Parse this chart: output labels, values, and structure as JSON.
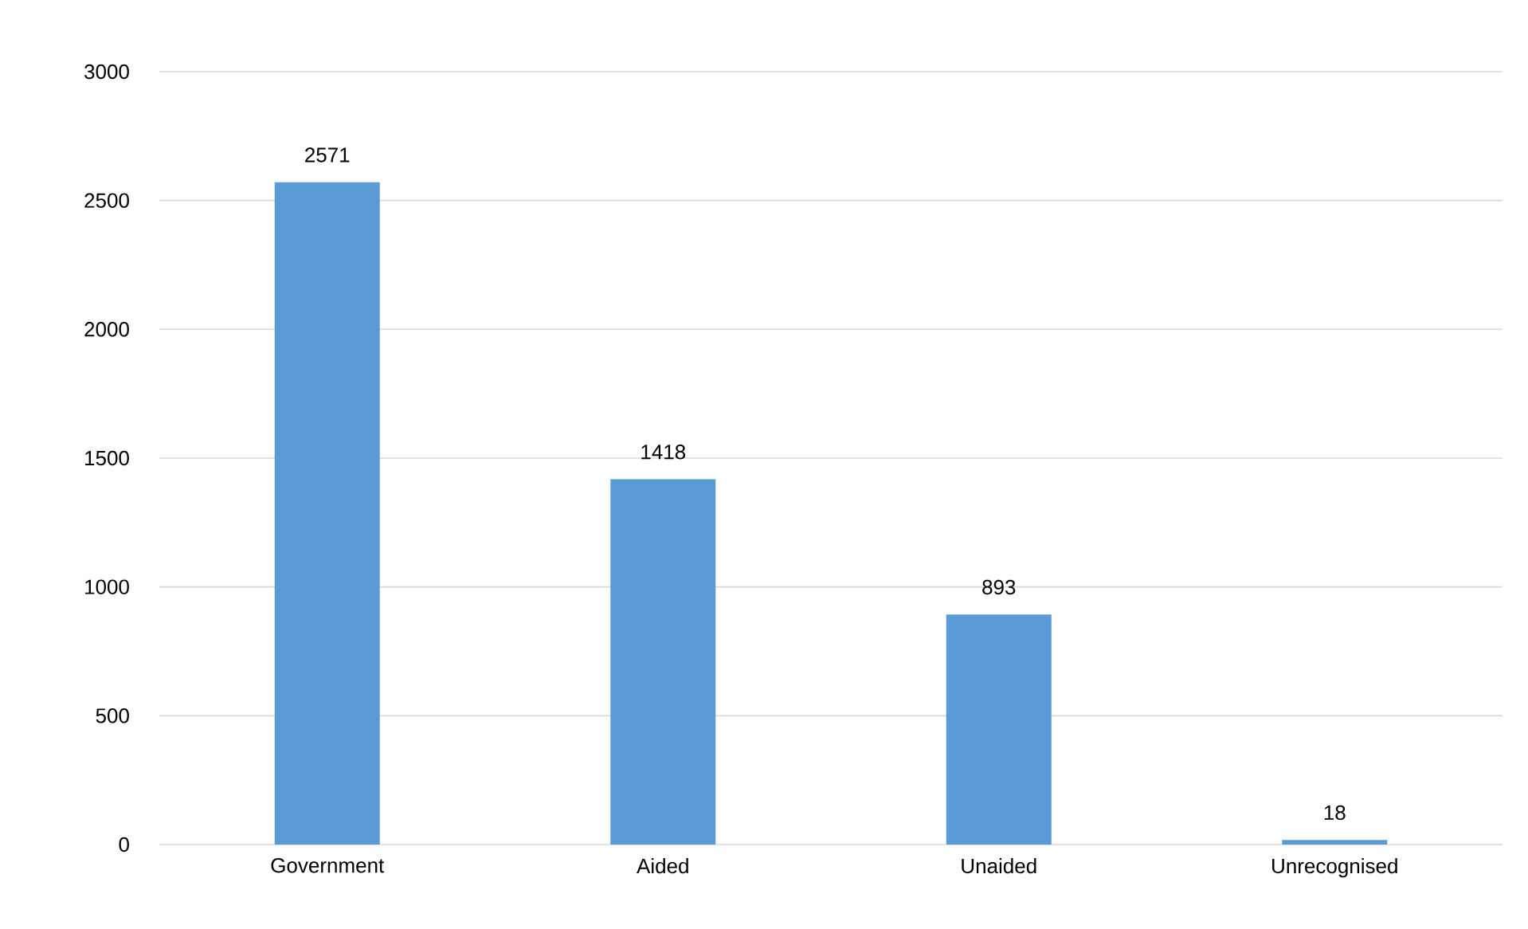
{
  "chart_data": {
    "type": "bar",
    "categories": [
      "Government",
      "Aided",
      "Unaided",
      "Unrecognised"
    ],
    "values": [
      2571,
      1418,
      893,
      18
    ],
    "color": "#5b9bd5",
    "ylim": [
      0,
      3000
    ],
    "yticks": [
      0,
      500,
      1000,
      1500,
      2000,
      2500,
      3000
    ],
    "grid": "y",
    "data_labels": true
  }
}
